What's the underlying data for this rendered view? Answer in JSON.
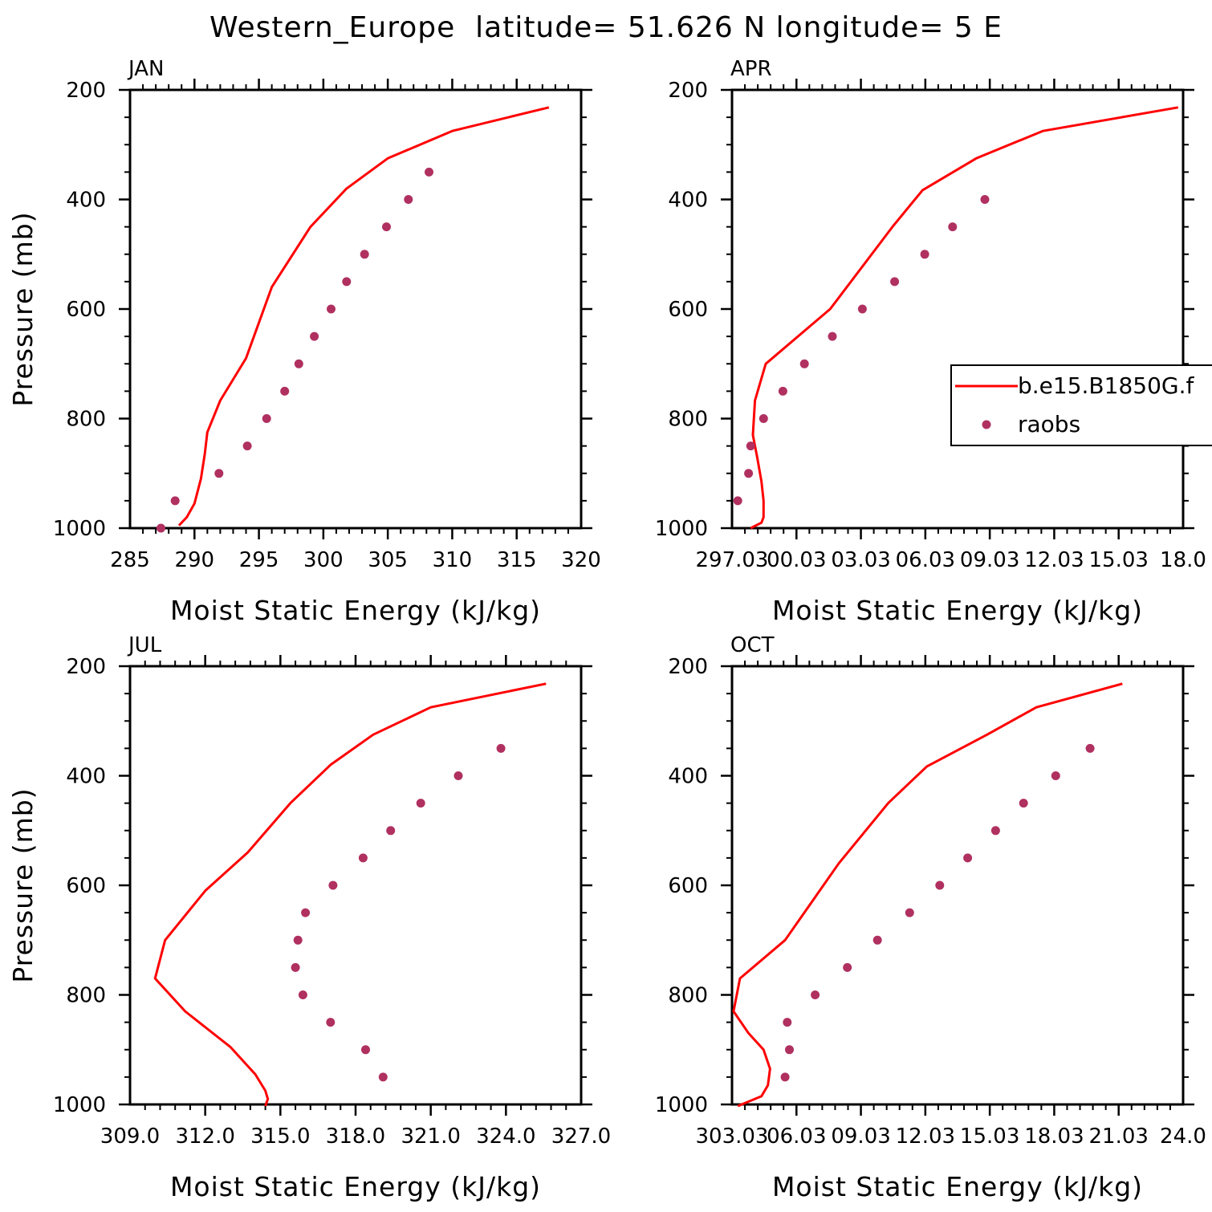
{
  "figure": {
    "title": "Western_Europe  latitude= 51.626 N longitude= 5 E",
    "colors": {
      "model_line": "#ff0000",
      "obs_points": "#b03060",
      "axes": "#000000"
    }
  },
  "chart_data": [
    {
      "type": "line",
      "panel_label": "JAN",
      "xlabel": "Moist Static Energy (kJ/kg)",
      "ylabel": "Pressure (mb)",
      "xlim": [
        285,
        320
      ],
      "ylim": [
        1000,
        200
      ],
      "x_ticks": [
        "285",
        "290",
        "295",
        "300",
        "305",
        "310",
        "315",
        "320"
      ],
      "y_ticks": [
        "200",
        "400",
        "600",
        "800",
        "1000"
      ],
      "series": [
        {
          "name": "b.e15.B1850G.f",
          "kind": "line",
          "x": [
            317.5,
            310.0,
            305.0,
            301.8,
            299.0,
            296.0,
            294.0,
            292.0,
            291.0,
            290.8,
            290.5,
            290.0,
            289.4,
            288.8
          ],
          "y": [
            232,
            275,
            325,
            380,
            450,
            560,
            690,
            767,
            825,
            865,
            910,
            955,
            980,
            995
          ]
        },
        {
          "name": "raobs",
          "kind": "scatter",
          "x": [
            308.2,
            306.6,
            304.9,
            303.2,
            301.8,
            300.6,
            299.3,
            298.1,
            297.0,
            295.6,
            294.1,
            291.9,
            288.5,
            287.4
          ],
          "y": [
            350,
            400,
            450,
            500,
            550,
            600,
            650,
            700,
            750,
            800,
            850,
            900,
            950,
            1000
          ]
        }
      ]
    },
    {
      "type": "line",
      "panel_label": "APR",
      "xlabel": "Moist Static Energy (kJ/kg)",
      "ylabel": "",
      "xlim": [
        297.03,
        318.03
      ],
      "ylim": [
        1000,
        200
      ],
      "x_ticks": [
        "297.03",
        "00.03",
        "03.03",
        "06.03",
        "09.03",
        "12.03",
        "15.03",
        "18.0"
      ],
      "y_ticks": [
        "200",
        "400",
        "600",
        "800",
        "1000"
      ],
      "legend": {
        "placement": "right",
        "entries": [
          {
            "label": "b.e15.B1850G.f",
            "kind": "line"
          },
          {
            "label": "raobs",
            "kind": "marker"
          }
        ]
      },
      "series": [
        {
          "name": "b.e15.B1850G.f",
          "kind": "line",
          "x": [
            317.8,
            311.5,
            308.4,
            305.9,
            304.5,
            301.6,
            298.6,
            298.1,
            298.0,
            298.2,
            298.4,
            298.5,
            298.5,
            298.4,
            297.9
          ],
          "y": [
            232,
            275,
            325,
            383,
            450,
            600,
            700,
            767,
            830,
            870,
            915,
            950,
            980,
            990,
            1000
          ]
        },
        {
          "name": "raobs",
          "kind": "scatter",
          "x": [
            308.8,
            307.3,
            306.0,
            304.6,
            303.1,
            301.7,
            300.4,
            299.4,
            298.5,
            297.9,
            297.8,
            297.3
          ],
          "y": [
            400,
            450,
            500,
            550,
            600,
            650,
            700,
            750,
            800,
            850,
            900,
            950
          ]
        }
      ]
    },
    {
      "type": "line",
      "panel_label": "JUL",
      "xlabel": "Moist Static Energy (kJ/kg)",
      "ylabel": "Pressure (mb)",
      "xlim": [
        309.0,
        327.0
      ],
      "ylim": [
        1000,
        200
      ],
      "x_ticks": [
        "309.0",
        "312.0",
        "315.0",
        "318.0",
        "321.0",
        "324.0",
        "327.0"
      ],
      "y_ticks": [
        "200",
        "400",
        "600",
        "800",
        "1000"
      ],
      "series": [
        {
          "name": "b.e15.B1850G.f",
          "kind": "line",
          "x": [
            325.6,
            321.0,
            318.7,
            317.0,
            315.4,
            313.7,
            312.0,
            310.4,
            310.0,
            311.2,
            313.0,
            314.0,
            314.4,
            314.5,
            314.4
          ],
          "y": [
            232,
            275,
            325,
            380,
            450,
            540,
            610,
            700,
            770,
            830,
            895,
            945,
            975,
            990,
            1003
          ]
        },
        {
          "name": "raobs",
          "kind": "scatter",
          "x": [
            323.8,
            322.1,
            320.6,
            319.4,
            318.3,
            317.1,
            316.0,
            315.7,
            315.6,
            315.9,
            317.0,
            318.4,
            319.1
          ],
          "y": [
            350,
            400,
            450,
            500,
            550,
            600,
            650,
            700,
            750,
            800,
            850,
            900,
            950
          ]
        }
      ]
    },
    {
      "type": "line",
      "panel_label": "OCT",
      "xlabel": "Moist Static Energy (kJ/kg)",
      "ylabel": "",
      "xlim": [
        303.03,
        324.03
      ],
      "ylim": [
        1000,
        200
      ],
      "x_ticks": [
        "303.03",
        "06.03",
        "09.03",
        "12.03",
        "15.03",
        "18.03",
        "21.03",
        "24.0"
      ],
      "y_ticks": [
        "200",
        "400",
        "600",
        "800",
        "1000"
      ],
      "series": [
        {
          "name": "b.e15.B1850G.f",
          "kind": "line",
          "x": [
            321.2,
            317.2,
            314.9,
            312.1,
            310.3,
            308.0,
            305.5,
            303.4,
            303.1,
            303.8,
            304.5,
            304.8,
            304.7,
            304.4,
            303.3
          ],
          "y": [
            232,
            275,
            325,
            383,
            450,
            560,
            700,
            770,
            830,
            870,
            900,
            935,
            965,
            985,
            1003
          ]
        },
        {
          "name": "raobs",
          "kind": "scatter",
          "x": [
            319.7,
            318.1,
            316.6,
            315.3,
            314.0,
            312.7,
            311.3,
            309.8,
            308.4,
            306.9,
            305.6,
            305.7,
            305.5
          ],
          "y": [
            350,
            400,
            450,
            500,
            550,
            600,
            650,
            700,
            750,
            800,
            850,
            900,
            950
          ]
        }
      ]
    }
  ]
}
